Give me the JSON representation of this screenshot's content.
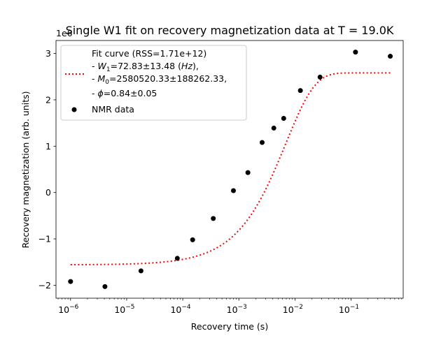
{
  "chart_data": {
    "type": "scatter",
    "title": "Single W1 fit on recovery magnetization data at T = 19.0K",
    "xlabel": "Recovery time (s)",
    "ylabel": "Recovery magnetization (arb. units)",
    "xscale": "log",
    "yscale_multiplier": "1e6",
    "xlim": [
      5.5e-07,
      0.85
    ],
    "ylim": [
      -2280000.0,
      3280000.0
    ],
    "x_ticks": [
      {
        "value": 1e-06,
        "base": "10",
        "exp": "−6"
      },
      {
        "value": 1e-05,
        "base": "10",
        "exp": "−5"
      },
      {
        "value": 0.0001,
        "base": "10",
        "exp": "−4"
      },
      {
        "value": 0.001,
        "base": "10",
        "exp": "−3"
      },
      {
        "value": 0.01,
        "base": "10",
        "exp": "−2"
      },
      {
        "value": 0.1,
        "base": "10",
        "exp": "−1"
      }
    ],
    "y_ticks": [
      {
        "value": -2000000.0,
        "label": "−2"
      },
      {
        "value": -1000000.0,
        "label": "−1"
      },
      {
        "value": 0,
        "label": "0"
      },
      {
        "value": 1000000.0,
        "label": "1"
      },
      {
        "value": 2000000.0,
        "label": "2"
      },
      {
        "value": 3000000.0,
        "label": "3"
      }
    ],
    "legend_position": "upper-left",
    "series": [
      {
        "name": "NMR data",
        "kind": "scatter",
        "color": "#000000",
        "x": [
          1e-06,
          4.1e-06,
          1.8e-05,
          8e-05,
          0.00015,
          0.00035,
          0.0008,
          0.00145,
          0.0026,
          0.0042,
          0.0063,
          0.0125,
          0.028,
          0.12,
          0.5
        ],
        "y": [
          -1920000,
          -2030000,
          -1690000,
          -1420000,
          -1020000,
          -560000,
          40000,
          430000,
          1080000,
          1390000,
          1600000,
          2200000,
          2490000,
          3030000,
          2940000
        ]
      },
      {
        "name": "Fit curve",
        "kind": "fit",
        "color": "#ff0000",
        "W1": 72.83,
        "M0": 2580520.33,
        "phi": 0.84,
        "baseline": -1560000
      }
    ],
    "legend": {
      "fit_line1": "Fit curve (RSS=1.71e+12)",
      "fit_line2_prefix": "- ",
      "fit_line2_sym": "W",
      "fit_line2_sub": "1",
      "fit_line2_rest": "=72.83±13.48 (",
      "fit_line2_unit": "Hz",
      "fit_line2_end": "),",
      "fit_line3_prefix": "- ",
      "fit_line3_sym": "M",
      "fit_line3_sub": "0",
      "fit_line3_rest": "=2580520.33±188262.33,",
      "fit_line4_prefix": "- ",
      "fit_line4_sym": "ϕ",
      "fit_line4_rest": "=0.84±0.05",
      "data_label": "NMR data"
    },
    "offset_text": "1e6"
  }
}
